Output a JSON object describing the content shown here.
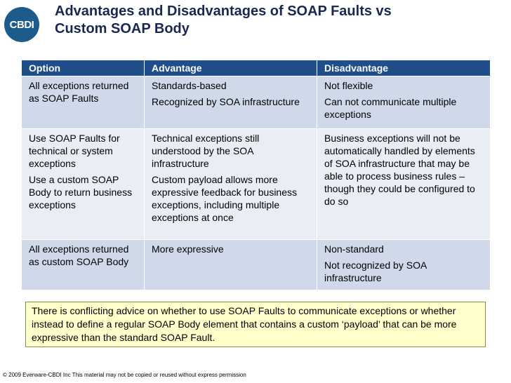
{
  "header": {
    "logo": "CBDI",
    "title": [
      "Advantages and Disadvantages of SOAP Faults vs",
      "Custom SOAP Body"
    ]
  },
  "table": {
    "columns": [
      "Option",
      "Advantage",
      "Disadvantage"
    ],
    "rows": [
      [
        [
          "All exceptions returned as SOAP Faults"
        ],
        [
          "Standards-based",
          "Recognized by SOA infrastructure"
        ],
        [
          "Not flexible",
          "Can not communicate multiple exceptions"
        ]
      ],
      [
        [
          "Use SOAP Faults for technical or system exceptions",
          "Use a custom SOAP Body to return business exceptions"
        ],
        [
          "Technical exceptions still understood by the SOA infrastructure",
          "Custom payload allows more expressive feedback for business exceptions, including multiple exceptions at once"
        ],
        [
          "Business exceptions will not be automatically handled by elements of SOA infrastructure that may be able to process business rules – though they could be configured to do so"
        ]
      ],
      [
        [
          "All exceptions returned as custom SOAP Body"
        ],
        [
          "More expressive"
        ],
        [
          "Non-standard",
          "Not recognized by SOA infrastructure"
        ]
      ]
    ]
  },
  "note": "There is conflicting advice on whether to use SOAP Faults to communicate exceptions or whether instead to define a regular SOAP Body element that contains a custom ‘payload’ that can be more expressive than the standard SOAP Fault.",
  "footer": "© 2009 Everware-CBDI Inc This material may not be copied or reused without express permission"
}
